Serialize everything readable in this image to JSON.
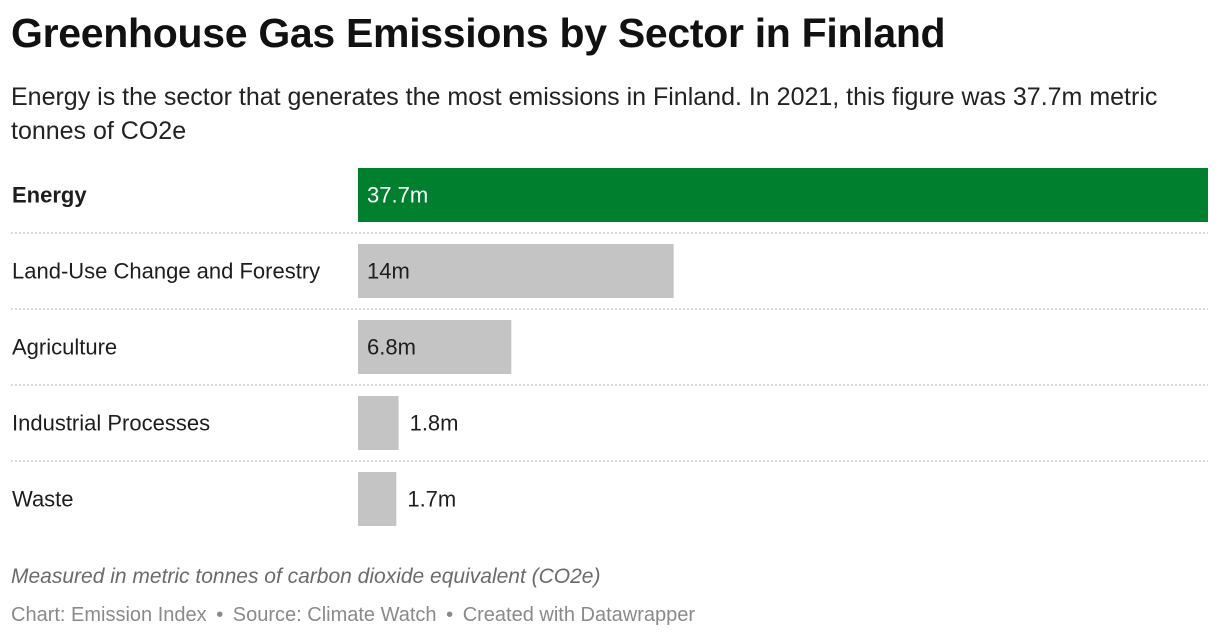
{
  "chart_data": {
    "type": "bar",
    "orientation": "horizontal",
    "title": "Greenhouse Gas Emissions by Sector in Finland",
    "subtitle": "Energy is the sector that generates the most emissions in Finland. In 2021, this figure was 37.7m metric tonnes of CO2e",
    "categories": [
      "Energy",
      "Land-Use Change and Forestry",
      "Agriculture",
      "Industrial Processes",
      "Waste"
    ],
    "values": [
      37.7,
      14,
      6.8,
      1.8,
      1.7
    ],
    "value_labels": [
      "37.7m",
      "14m",
      "6.8m",
      "1.8m",
      "1.7m"
    ],
    "highlighted": [
      true,
      false,
      false,
      false,
      false
    ],
    "colors": {
      "highlight": "#00802f",
      "default": "#c4c4c4"
    },
    "xlim": [
      0,
      37.7
    ],
    "grid": false,
    "notes": "Measured in metric tonnes of carbon dioxide equivalent (CO2e)"
  },
  "footer": {
    "chart_credit": "Chart: Emission Index",
    "source": "Source: Climate Watch",
    "created_with": "Created with Datawrapper",
    "separator": "•"
  }
}
